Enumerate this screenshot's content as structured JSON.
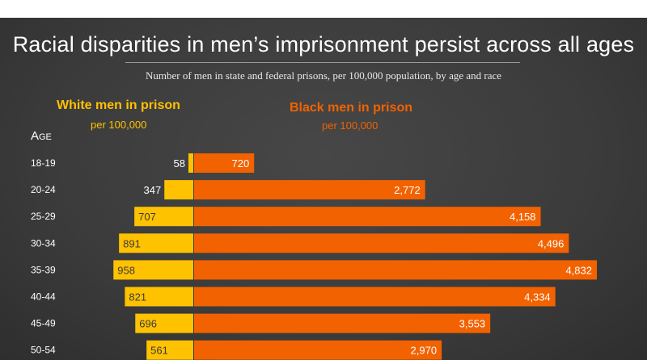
{
  "title": "Racial disparities in men’s imprisonment persist across all ages",
  "subtitle": "Number of men in state and federal prisons, per 100,000 population, by age and race",
  "age_label": "Age",
  "legend": {
    "white": "White men in prison",
    "white_unit": "per 100,000",
    "black": "Black men in prison",
    "black_unit": "per 100,000"
  },
  "colors": {
    "white": "#ffc200",
    "black": "#f26200",
    "background": "#3e3e3e"
  },
  "chart_data": {
    "type": "bar",
    "orientation": "horizontal, diverging",
    "title": "Racial disparities in men’s imprisonment persist across all ages",
    "subtitle": "Number of men in state and federal prisons, per 100,000 population, by age and race",
    "categories": [
      "18-19",
      "20-24",
      "25-29",
      "30-34",
      "35-39",
      "40-44",
      "45-49",
      "50-54"
    ],
    "series": [
      {
        "name": "White men in prison",
        "values": [
          58,
          347,
          707,
          891,
          958,
          821,
          696,
          561
        ],
        "labels": [
          "58",
          "347",
          "707",
          "891",
          "958",
          "821",
          "696",
          "561"
        ]
      },
      {
        "name": "Black men in prison",
        "values": [
          720,
          2772,
          4158,
          4496,
          4832,
          4334,
          3553,
          2970
        ],
        "labels": [
          "720",
          "2,772",
          "4,158",
          "4,496",
          "4,832",
          "4,334",
          "3,553",
          "2,970"
        ]
      }
    ]
  }
}
